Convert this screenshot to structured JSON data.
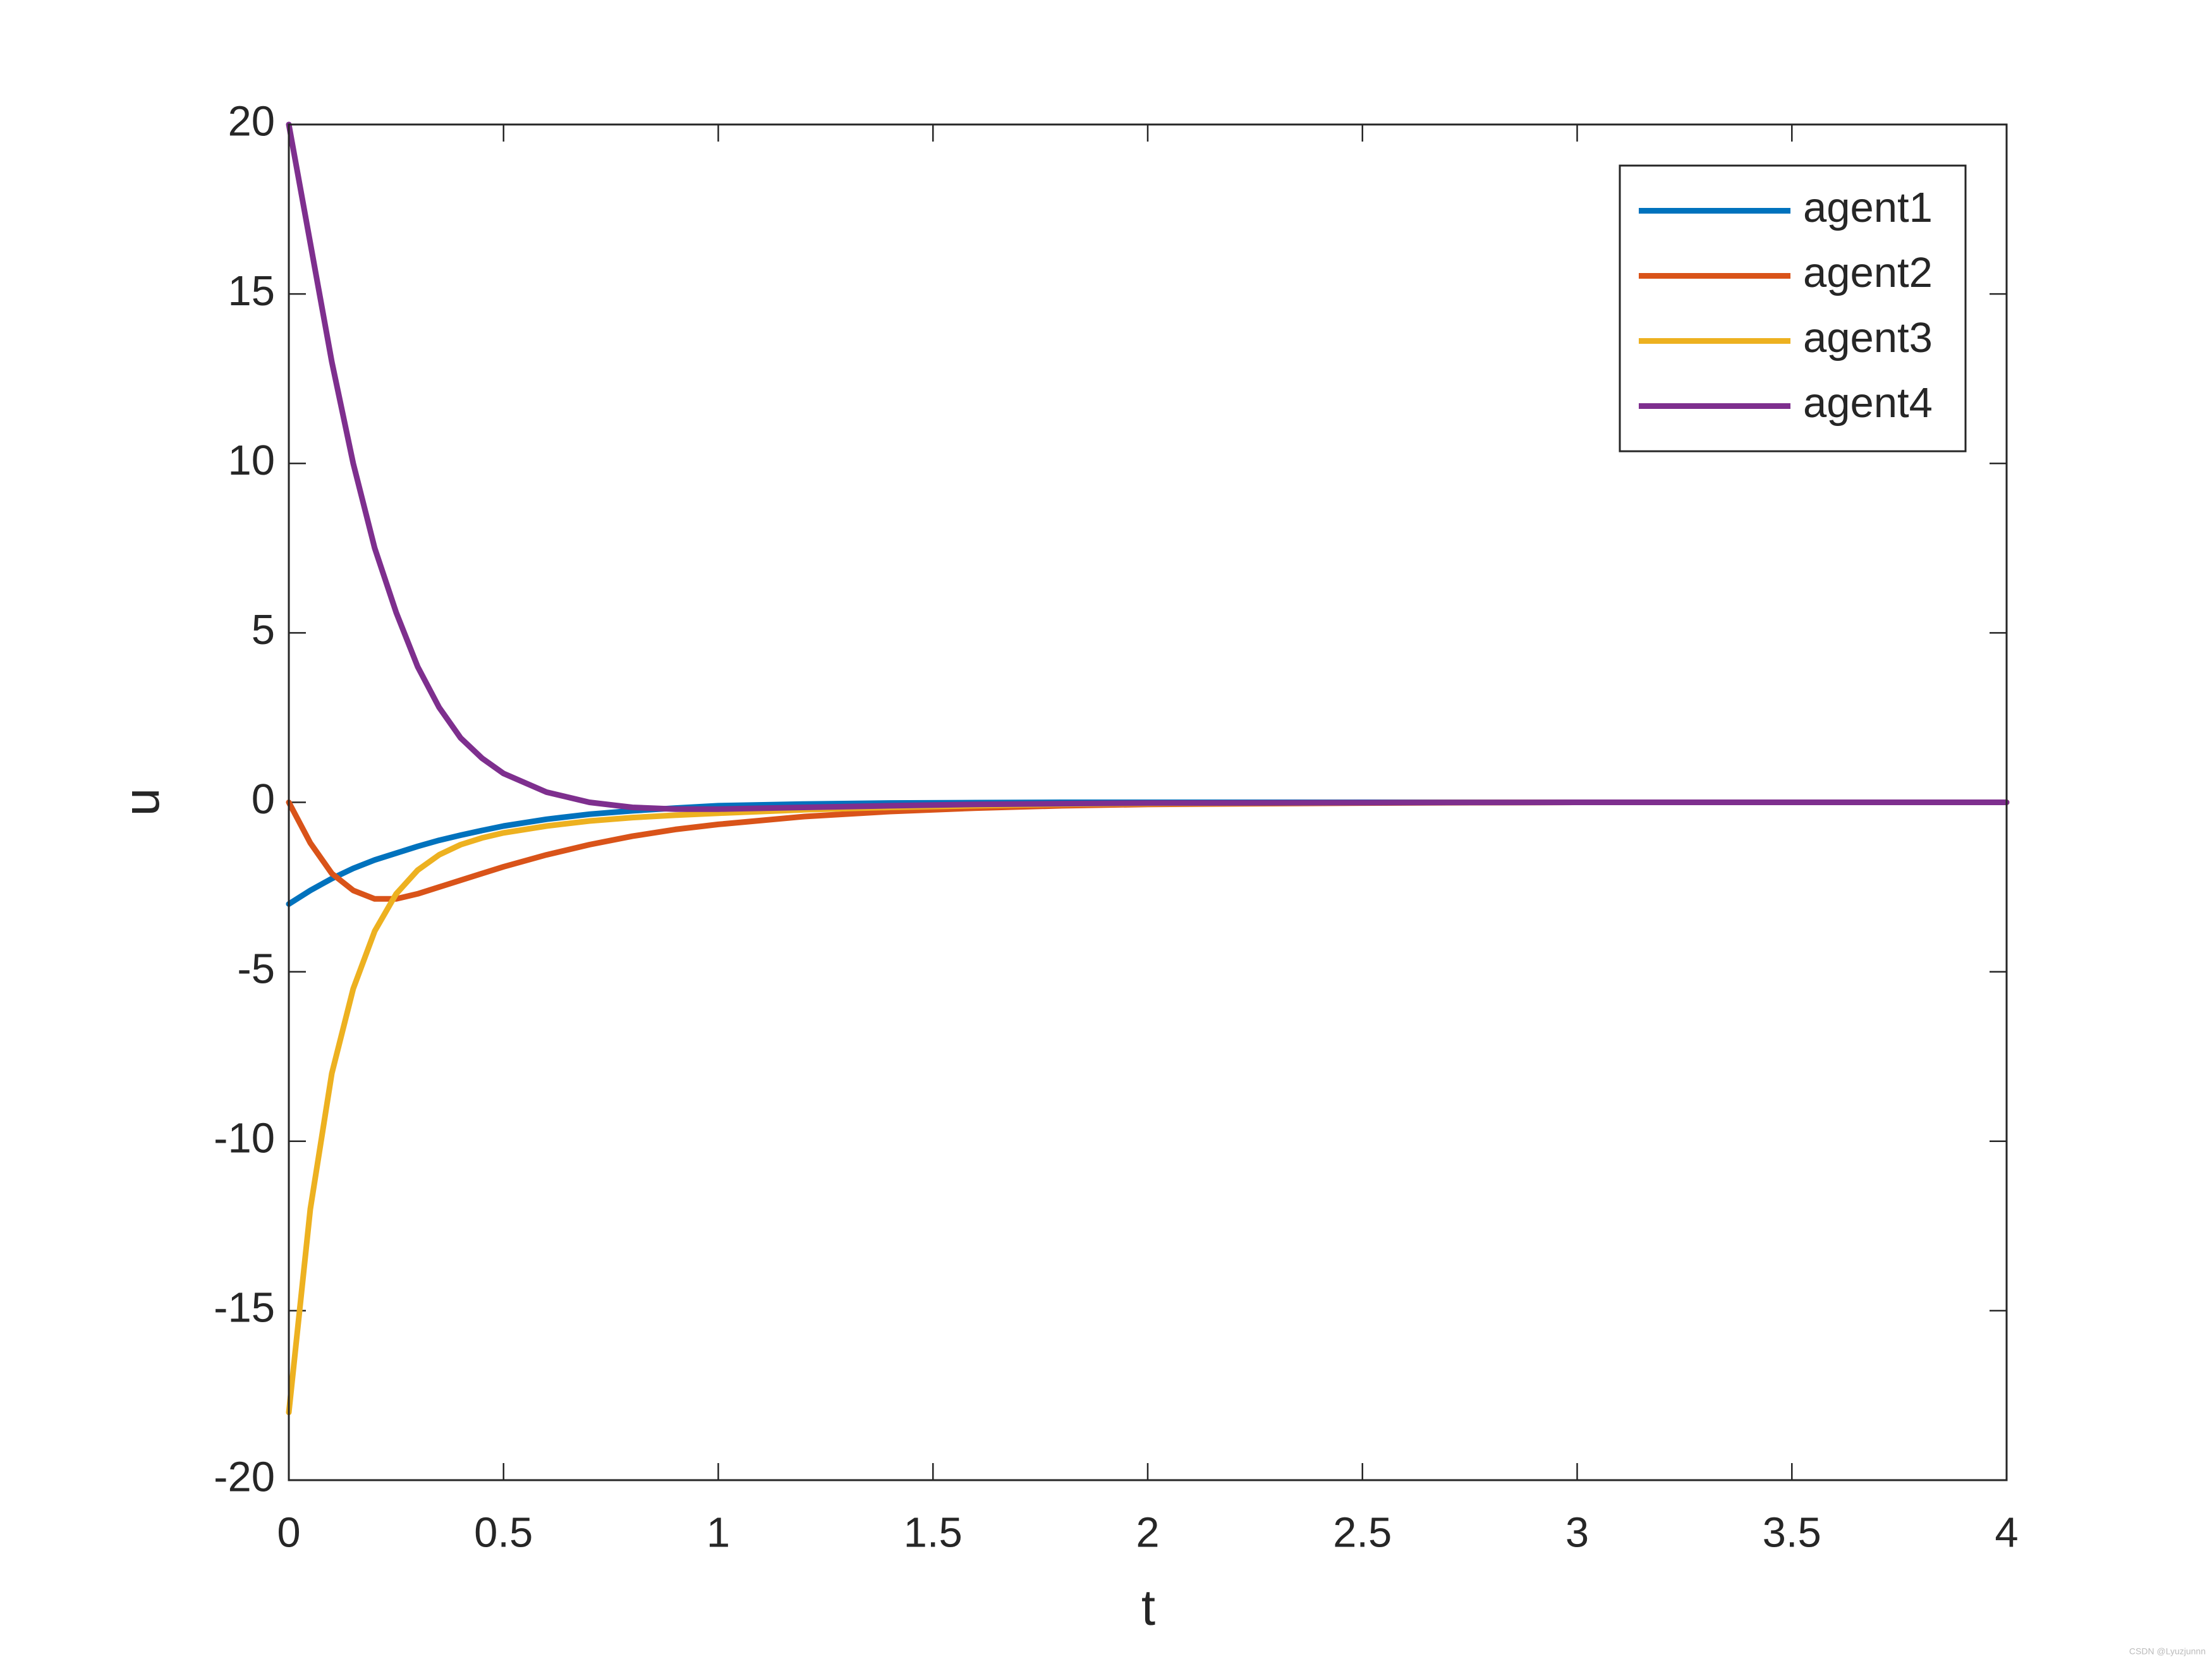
{
  "chart_data": {
    "type": "line",
    "xlabel": "t",
    "ylabel": "u",
    "x": [
      0,
      0.05,
      0.1,
      0.15,
      0.2,
      0.25,
      0.3,
      0.35,
      0.4,
      0.45,
      0.5,
      0.6,
      0.7,
      0.8,
      0.9,
      1.0,
      1.2,
      1.4,
      1.6,
      1.8,
      2.0,
      2.5,
      3,
      3.5,
      4
    ],
    "series": [
      {
        "name": "agent1",
        "color": "#0072bd",
        "values": [
          -3,
          -2.6,
          -2.25,
          -1.95,
          -1.7,
          -1.5,
          -1.3,
          -1.12,
          -0.97,
          -0.83,
          -0.7,
          -0.5,
          -0.35,
          -0.25,
          -0.17,
          -0.1,
          -0.05,
          -0.02,
          -0.01,
          0,
          0,
          0,
          0,
          0,
          0
        ]
      },
      {
        "name": "agent2",
        "color": "#d95319",
        "values": [
          0,
          -1.2,
          -2.1,
          -2.6,
          -2.85,
          -2.85,
          -2.7,
          -2.5,
          -2.3,
          -2.1,
          -1.9,
          -1.55,
          -1.25,
          -1.0,
          -0.8,
          -0.65,
          -0.42,
          -0.27,
          -0.17,
          -0.1,
          -0.06,
          -0.02,
          0,
          0,
          0
        ]
      },
      {
        "name": "agent3",
        "color": "#edb120",
        "values": [
          -18,
          -12,
          -8,
          -5.5,
          -3.8,
          -2.7,
          -2.0,
          -1.55,
          -1.25,
          -1.05,
          -0.9,
          -0.7,
          -0.55,
          -0.45,
          -0.38,
          -0.32,
          -0.22,
          -0.15,
          -0.1,
          -0.06,
          -0.04,
          -0.01,
          0,
          0,
          0
        ]
      },
      {
        "name": "agent4",
        "color": "#7e2f8e",
        "values": [
          20,
          16.5,
          13,
          10,
          7.5,
          5.6,
          4.0,
          2.8,
          1.9,
          1.3,
          0.85,
          0.3,
          0,
          -0.15,
          -0.2,
          -0.2,
          -0.15,
          -0.1,
          -0.06,
          -0.04,
          -0.02,
          -0.01,
          0,
          0,
          0
        ]
      }
    ],
    "xlim": [
      0,
      4
    ],
    "xticks": [
      0,
      0.5,
      1,
      1.5,
      2,
      2.5,
      3,
      3.5,
      4
    ],
    "ylim": [
      -20,
      20
    ],
    "yticks": [
      -20,
      -15,
      -10,
      -5,
      0,
      5,
      10,
      15,
      20
    ],
    "grid": false,
    "legend": "top-right",
    "watermark": "CSDN @Lyuzjunnn"
  }
}
